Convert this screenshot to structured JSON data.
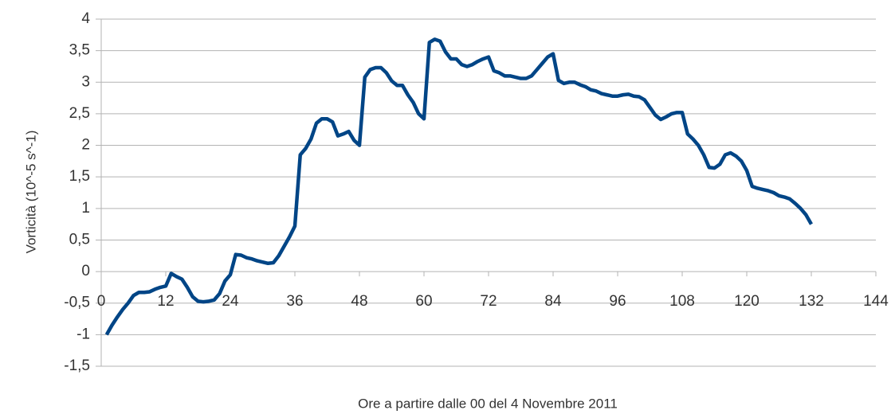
{
  "chart_data": {
    "type": "line",
    "ylabel": "Vorticità (10^-5 s^-1)",
    "xlabel": "Ore a partire dalle 00 del 4 Novembre 2011",
    "x": [
      1,
      2,
      3,
      4,
      5,
      6,
      7,
      8,
      9,
      10,
      11,
      12,
      13,
      14,
      15,
      16,
      17,
      18,
      19,
      20,
      21,
      22,
      23,
      24,
      25,
      26,
      27,
      28,
      29,
      30,
      31,
      32,
      33,
      34,
      35,
      36,
      37,
      38,
      39,
      40,
      41,
      42,
      43,
      44,
      45,
      46,
      47,
      48,
      49,
      50,
      51,
      52,
      53,
      54,
      55,
      56,
      57,
      58,
      59,
      60,
      61,
      62,
      63,
      64,
      65,
      66,
      67,
      68,
      69,
      70,
      71,
      72,
      73,
      74,
      75,
      76,
      77,
      78,
      79,
      80,
      81,
      82,
      83,
      84,
      85,
      86,
      87,
      88,
      89,
      90,
      91,
      92,
      93,
      94,
      95,
      96,
      97,
      98,
      99,
      100,
      101,
      102,
      103,
      104,
      105,
      106,
      107,
      108,
      109,
      110,
      111,
      112,
      113,
      114,
      115,
      116,
      117,
      118,
      119,
      120,
      121,
      122,
      123,
      124,
      125,
      126,
      127,
      128,
      129,
      130,
      131,
      132
    ],
    "series": [
      {
        "color": "#004586",
        "values": [
          -1.0,
          -0.85,
          -0.72,
          -0.6,
          -0.5,
          -0.38,
          -0.33,
          -0.33,
          -0.32,
          -0.28,
          -0.25,
          -0.23,
          -0.03,
          -0.08,
          -0.12,
          -0.25,
          -0.4,
          -0.47,
          -0.48,
          -0.47,
          -0.45,
          -0.35,
          -0.15,
          -0.05,
          0.27,
          0.26,
          0.22,
          0.2,
          0.17,
          0.15,
          0.13,
          0.14,
          0.25,
          0.4,
          0.55,
          0.72,
          1.85,
          1.95,
          2.1,
          2.35,
          2.42,
          2.42,
          2.37,
          2.15,
          2.18,
          2.22,
          2.08,
          2.0,
          3.08,
          3.2,
          3.23,
          3.23,
          3.15,
          3.02,
          2.95,
          2.95,
          2.8,
          2.68,
          2.5,
          2.42,
          3.63,
          3.68,
          3.65,
          3.48,
          3.37,
          3.37,
          3.28,
          3.25,
          3.28,
          3.33,
          3.37,
          3.4,
          3.18,
          3.15,
          3.1,
          3.1,
          3.08,
          3.06,
          3.06,
          3.1,
          3.2,
          3.3,
          3.4,
          3.45,
          3.03,
          2.98,
          3.0,
          3.0,
          2.96,
          2.93,
          2.88,
          2.86,
          2.82,
          2.8,
          2.78,
          2.78,
          2.8,
          2.81,
          2.78,
          2.77,
          2.72,
          2.6,
          2.48,
          2.41,
          2.45,
          2.5,
          2.52,
          2.52,
          2.18,
          2.1,
          2.0,
          1.85,
          1.65,
          1.64,
          1.7,
          1.85,
          1.88,
          1.83,
          1.75,
          1.6,
          1.35,
          1.32,
          1.3,
          1.28,
          1.25,
          1.2,
          1.18,
          1.15,
          1.08,
          1.0,
          0.9,
          0.75
        ]
      }
    ],
    "xlim": [
      0,
      144
    ],
    "xticks": [
      0,
      12,
      24,
      36,
      48,
      60,
      72,
      84,
      96,
      108,
      120,
      132,
      144
    ],
    "ylim": [
      -1.5,
      4
    ],
    "yticks": [
      {
        "value": -1.5,
        "label": "-1,5"
      },
      -1,
      {
        "value": -0.5,
        "label": "-0,5"
      },
      0,
      {
        "value": 0.5,
        "label": "0,5"
      },
      1,
      {
        "value": 1.5,
        "label": "1,5"
      },
      2,
      {
        "value": 2.5,
        "label": "2,5"
      },
      3,
      {
        "value": 3.5,
        "label": "3,5"
      },
      4
    ],
    "grid": true
  }
}
